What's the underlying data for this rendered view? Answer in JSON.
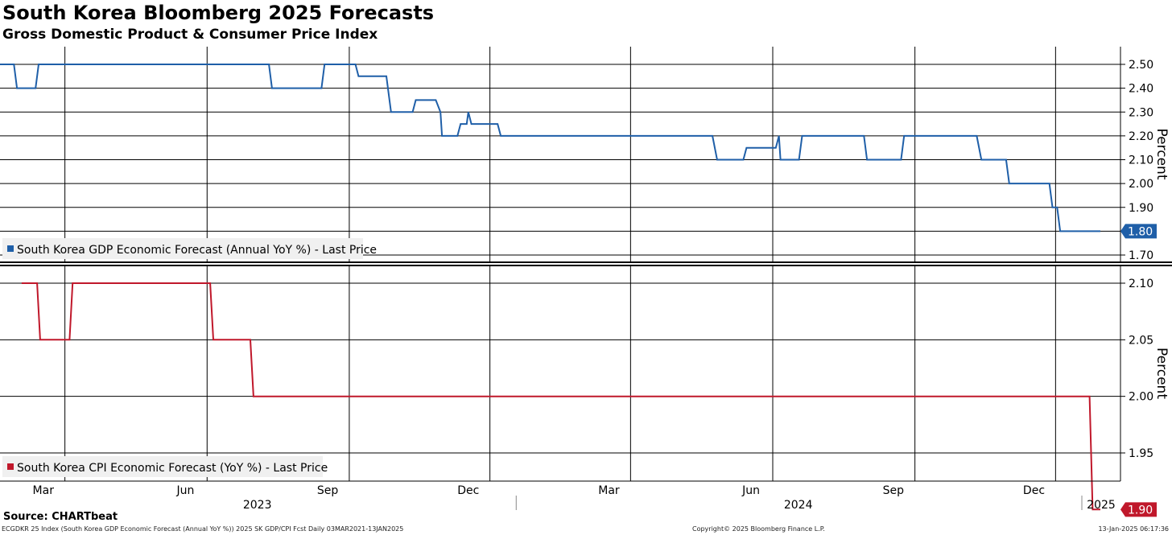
{
  "title": "South Korea Bloomberg 2025 Forecasts",
  "subtitle": "Gross Domestic Product & Consumer Price Index",
  "source": "Source: CHARTbeat",
  "footer": {
    "description": "ECGDKR 25 Index (South Korea GDP Economic Forecast (Annual YoY %)) 2025 SK GDP/CPI Fcst  Daily 03MAR2021-13JAN2025",
    "copyright": "Copyright© 2025 Bloomberg Finance L.P.",
    "timestamp": "13-Jan-2025 06:17:36"
  },
  "colors": {
    "gdp": "#1f5fa8",
    "cpi": "#c0182b",
    "grid": "#000000"
  },
  "chart_data": [
    {
      "type": "line",
      "name": "gdp-panel",
      "ylabel": "Percent",
      "ylim": [
        1.66,
        2.55
      ],
      "yticks": [
        1.7,
        1.8,
        1.9,
        2.0,
        2.1,
        2.2,
        2.3,
        2.4,
        2.5
      ],
      "yticklabels": [
        "1.70",
        "1.80",
        "1.90",
        "2.00",
        "2.10",
        "2.20",
        "2.30",
        "2.40",
        "2.50"
      ],
      "series": [
        {
          "name": "South Korea GDP Economic Forecast (Annual YoY %) - Last Price",
          "last_label": "1.80",
          "points": [
            [
              "2023-02-01",
              2.5
            ],
            [
              "2023-02-10",
              2.5
            ],
            [
              "2023-02-12",
              2.4
            ],
            [
              "2023-02-24",
              2.4
            ],
            [
              "2023-02-26",
              2.5
            ],
            [
              "2023-07-25",
              2.5
            ],
            [
              "2023-07-27",
              2.4
            ],
            [
              "2023-08-28",
              2.4
            ],
            [
              "2023-08-30",
              2.5
            ],
            [
              "2023-09-19",
              2.5
            ],
            [
              "2023-09-21",
              2.45
            ],
            [
              "2023-10-09",
              2.45
            ],
            [
              "2023-10-12",
              2.3
            ],
            [
              "2023-10-26",
              2.3
            ],
            [
              "2023-10-28",
              2.35
            ],
            [
              "2023-11-10",
              2.35
            ],
            [
              "2023-11-13",
              2.3
            ],
            [
              "2023-11-14",
              2.2
            ],
            [
              "2023-11-24",
              2.2
            ],
            [
              "2023-11-26",
              2.25
            ],
            [
              "2023-11-30",
              2.25
            ],
            [
              "2023-12-01",
              2.3
            ],
            [
              "2023-12-03",
              2.25
            ],
            [
              "2023-12-20",
              2.25
            ],
            [
              "2023-12-22",
              2.2
            ],
            [
              "2024-05-07",
              2.2
            ],
            [
              "2024-05-10",
              2.1
            ],
            [
              "2024-05-27",
              2.1
            ],
            [
              "2024-05-29",
              2.15
            ],
            [
              "2024-06-17",
              2.15
            ],
            [
              "2024-06-19",
              2.2
            ],
            [
              "2024-06-20",
              2.1
            ],
            [
              "2024-07-02",
              2.1
            ],
            [
              "2024-07-04",
              2.2
            ],
            [
              "2024-08-13",
              2.2
            ],
            [
              "2024-08-15",
              2.1
            ],
            [
              "2024-09-06",
              2.1
            ],
            [
              "2024-09-08",
              2.2
            ],
            [
              "2024-10-25",
              2.2
            ],
            [
              "2024-10-28",
              2.1
            ],
            [
              "2024-11-13",
              2.1
            ],
            [
              "2024-11-15",
              2.0
            ],
            [
              "2024-12-11",
              2.0
            ],
            [
              "2024-12-13",
              1.9
            ],
            [
              "2024-12-16",
              1.9
            ],
            [
              "2024-12-18",
              1.8
            ],
            [
              "2025-01-13",
              1.8
            ]
          ]
        }
      ]
    },
    {
      "type": "line",
      "name": "cpi-panel",
      "ylabel": "Percent",
      "ylim": [
        1.875,
        2.12
      ],
      "yticks": [
        1.95,
        2.0,
        2.05,
        2.1
      ],
      "yticklabels": [
        "1.95",
        "2.00",
        "2.05",
        "2.10"
      ],
      "series": [
        {
          "name": "South Korea CPI Economic Forecast (YoY %) - Last Price",
          "last_label": "1.90",
          "points": [
            [
              "2023-02-15",
              2.1
            ],
            [
              "2023-02-25",
              2.1
            ],
            [
              "2023-02-27",
              2.05
            ],
            [
              "2023-03-18",
              2.05
            ],
            [
              "2023-03-20",
              2.1
            ],
            [
              "2023-06-17",
              2.1
            ],
            [
              "2023-06-19",
              2.05
            ],
            [
              "2023-07-13",
              2.05
            ],
            [
              "2023-07-15",
              2.0
            ],
            [
              "2025-01-06",
              2.0
            ],
            [
              "2025-01-08",
              1.9
            ],
            [
              "2025-01-13",
              1.9
            ]
          ]
        }
      ]
    }
  ],
  "x_axis": {
    "range": [
      "2023-02-01",
      "2025-01-26"
    ],
    "month_ticks": [
      {
        "label": "Mar",
        "date": "2023-03-01"
      },
      {
        "label": "Jun",
        "date": "2023-06-01"
      },
      {
        "label": "Sep",
        "date": "2023-09-01"
      },
      {
        "label": "Dec",
        "date": "2023-12-01"
      },
      {
        "label": "Mar",
        "date": "2024-03-01"
      },
      {
        "label": "Jun",
        "date": "2024-06-01"
      },
      {
        "label": "Sep",
        "date": "2024-09-01"
      },
      {
        "label": "Dec",
        "date": "2024-12-01"
      }
    ],
    "gridlines": [
      "2023-03-15",
      "2023-06-15",
      "2023-09-15",
      "2023-12-15",
      "2024-03-15",
      "2024-06-15",
      "2024-09-15",
      "2024-12-15"
    ],
    "year_labels": [
      {
        "label": "2023",
        "from": "2023-01-01",
        "to": "2023-12-31"
      },
      {
        "label": "2024",
        "from": "2024-01-01",
        "to": "2024-12-31"
      },
      {
        "label": "2025",
        "from": "2025-01-01",
        "to": "2025-01-26"
      }
    ]
  }
}
